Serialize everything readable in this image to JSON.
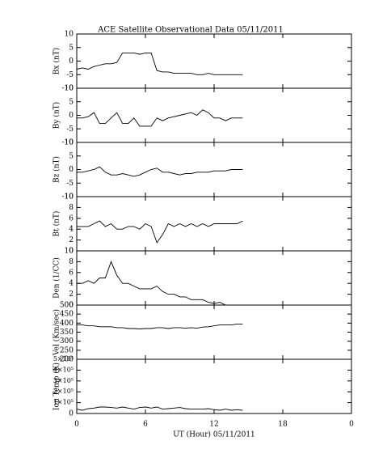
{
  "title": "ACE Satellite Observational Data   05/11/2011",
  "chart_data": [
    {
      "type": "line",
      "ylabel": "Bx (nT)",
      "xlim": [
        0,
        24
      ],
      "ylim": [
        -10,
        10
      ],
      "yticks": [
        -10,
        -5,
        0,
        5,
        10
      ],
      "x": [
        0,
        0.5,
        1,
        1.5,
        2,
        2.5,
        3,
        3.5,
        4,
        4.5,
        5,
        5.5,
        6,
        6.5,
        7,
        7.5,
        8,
        8.5,
        9,
        9.5,
        10,
        10.5,
        11,
        11.5,
        12,
        12.5,
        13,
        13.5,
        14,
        14.5
      ],
      "values": [
        -3,
        -2.5,
        -3,
        -2,
        -1.5,
        -1,
        -1,
        -0.5,
        3,
        3,
        3,
        2.5,
        3,
        3,
        -3.5,
        -4,
        -4,
        -4.5,
        -4.5,
        -4.5,
        -4.5,
        -5,
        -5,
        -4.5,
        -5,
        -5,
        -5,
        -5,
        -5,
        -5
      ],
      "color": "#000000"
    },
    {
      "type": "line",
      "ylabel": "By (nT)",
      "xlim": [
        0,
        24
      ],
      "ylim": [
        -10,
        10
      ],
      "yticks": [
        -10,
        -5,
        0,
        5,
        10
      ],
      "x": [
        0,
        0.5,
        1,
        1.5,
        2,
        2.5,
        3,
        3.5,
        4,
        4.5,
        5,
        5.5,
        6,
        6.5,
        7,
        7.5,
        8,
        8.5,
        9,
        9.5,
        10,
        10.5,
        11,
        11.5,
        12,
        12.5,
        13,
        13.5,
        14,
        14.5
      ],
      "values": [
        -1,
        -1,
        -0.5,
        1,
        -3,
        -3,
        -1,
        1,
        -3,
        -3,
        -1,
        -4,
        -4,
        -4,
        -1,
        -2,
        -1,
        -0.5,
        0,
        0.5,
        1,
        0,
        2,
        1,
        -1,
        -1,
        -2,
        -1,
        -1,
        -1
      ],
      "color": "#000000"
    },
    {
      "type": "line",
      "ylabel": "Bz (nT)",
      "xlim": [
        0,
        24
      ],
      "ylim": [
        -10,
        10
      ],
      "yticks": [
        -10,
        -5,
        0,
        5,
        10
      ],
      "x": [
        0,
        0.5,
        1,
        1.5,
        2,
        2.5,
        3,
        3.5,
        4,
        4.5,
        5,
        5.5,
        6,
        6.5,
        7,
        7.5,
        8,
        8.5,
        9,
        9.5,
        10,
        10.5,
        11,
        11.5,
        12,
        12.5,
        13,
        13.5,
        14,
        14.5
      ],
      "values": [
        -1,
        -1,
        -0.5,
        0,
        1,
        -1,
        -2,
        -2,
        -1.5,
        -2,
        -2.5,
        -2,
        -1,
        0,
        0.5,
        -1,
        -1,
        -1.5,
        -2,
        -1.5,
        -1.5,
        -1,
        -1,
        -1,
        -0.5,
        -0.5,
        -0.5,
        0,
        0,
        0
      ],
      "color": "#000000"
    },
    {
      "type": "line",
      "ylabel": "Bt (nT)",
      "xlim": [
        0,
        24
      ],
      "ylim": [
        0,
        10
      ],
      "yticks": [
        0,
        2,
        4,
        6,
        8,
        10
      ],
      "x": [
        0,
        0.5,
        1,
        1.5,
        2,
        2.5,
        3,
        3.5,
        4,
        4.5,
        5,
        5.5,
        6,
        6.5,
        7,
        7.5,
        8,
        8.5,
        9,
        9.5,
        10,
        10.5,
        11,
        11.5,
        12,
        12.5,
        13,
        13.5,
        14,
        14.5
      ],
      "values": [
        4.5,
        4.5,
        4.5,
        5,
        5.5,
        4.5,
        5,
        4,
        4,
        4.5,
        4.5,
        4,
        5,
        4.5,
        1.5,
        3,
        5,
        4.5,
        5,
        4.5,
        5,
        4.5,
        5,
        4.5,
        5,
        5,
        5,
        5,
        5,
        5.5
      ],
      "color": "#000000"
    },
    {
      "type": "line",
      "ylabel": "Den (1/CC)",
      "xlim": [
        0,
        24
      ],
      "ylim": [
        0,
        10
      ],
      "yticks": [
        0,
        2,
        4,
        6,
        8,
        10
      ],
      "x": [
        0,
        0.5,
        1,
        1.5,
        2,
        2.5,
        3,
        3.5,
        4,
        4.5,
        5,
        5.5,
        6,
        6.5,
        7,
        7.5,
        8,
        8.5,
        9,
        9.5,
        10,
        10.5,
        11,
        11.5,
        12,
        12.5,
        13,
        13.5,
        14,
        14.5
      ],
      "values": [
        4,
        4,
        4.5,
        4,
        5,
        5,
        8,
        5.5,
        4,
        4,
        3.5,
        3,
        3,
        3,
        3.5,
        2.5,
        2,
        2,
        1.5,
        1.5,
        1,
        1,
        1,
        0.5,
        0.3,
        0.5,
        0,
        0,
        0,
        0
      ],
      "color": "#000000"
    },
    {
      "type": "line",
      "ylabel": "Vel (Km/sec)",
      "xlim": [
        0,
        24
      ],
      "ylim": [
        200,
        500
      ],
      "yticks": [
        200,
        250,
        300,
        350,
        400,
        450,
        500
      ],
      "x": [
        0,
        0.5,
        1,
        1.5,
        2,
        2.5,
        3,
        3.5,
        4,
        4.5,
        5,
        5.5,
        6,
        6.5,
        7,
        7.5,
        8,
        8.5,
        9,
        9.5,
        10,
        10.5,
        11,
        11.5,
        12,
        12.5,
        13,
        13.5,
        14,
        14.5
      ],
      "values": [
        390,
        390,
        385,
        385,
        380,
        380,
        380,
        375,
        375,
        370,
        370,
        368,
        370,
        370,
        375,
        375,
        370,
        375,
        375,
        372,
        375,
        372,
        378,
        380,
        385,
        390,
        390,
        390,
        395,
        395
      ],
      "color": "#000000"
    },
    {
      "type": "line",
      "ylabel": "Ion Temp (K)",
      "xlabel": "UT (Hour)   05/11/2011",
      "xlim": [
        0,
        24
      ],
      "ylim": [
        0,
        500000
      ],
      "xticks": [
        0,
        6,
        12,
        18,
        {
          "value": 24,
          "label": "0"
        }
      ],
      "yticks": [
        0,
        {
          "value": 100000,
          "label": "1×10⁵"
        },
        {
          "value": 200000,
          "label": "2×10⁵"
        },
        {
          "value": 300000,
          "label": "3×10⁵"
        },
        {
          "value": 400000,
          "label": "4×10⁵"
        },
        {
          "value": 500000,
          "label": "5×10⁵"
        }
      ],
      "x": [
        0,
        0.5,
        1,
        1.5,
        2,
        2.5,
        3,
        3.5,
        4,
        4.5,
        5,
        5.5,
        6,
        6.5,
        7,
        7.5,
        8,
        8.5,
        9,
        9.5,
        10,
        10.5,
        11,
        11.5,
        12,
        12.5,
        13,
        13.5,
        14,
        14.5
      ],
      "values": [
        40000,
        30000,
        45000,
        50000,
        60000,
        60000,
        55000,
        50000,
        60000,
        50000,
        40000,
        55000,
        60000,
        50000,
        60000,
        40000,
        45000,
        50000,
        55000,
        45000,
        40000,
        40000,
        40000,
        45000,
        35000,
        30000,
        40000,
        30000,
        35000,
        30000
      ],
      "color": "#000000"
    }
  ]
}
